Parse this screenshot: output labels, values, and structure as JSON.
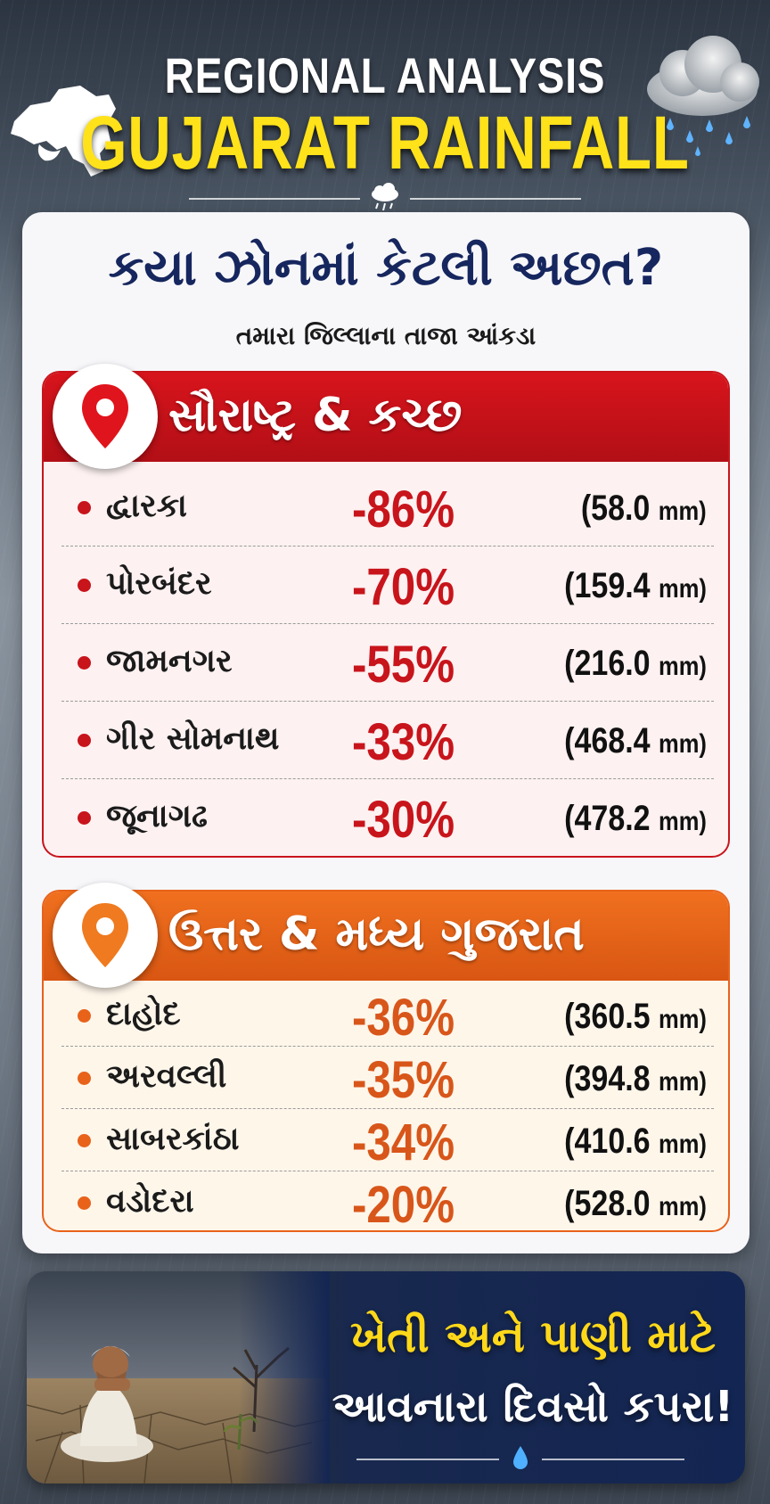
{
  "header": {
    "title_line1": "REGIONAL ANALYSIS",
    "title_line2": "GUJARAT RAINFALL",
    "decor_icons": [
      "gujarat-map-icon",
      "rain-cloud-icon"
    ]
  },
  "card": {
    "question": "કયા ઝોનમાં કેટલી અછત?",
    "subquestion": "તમારા જિલ્લાના તાજા આંકડા"
  },
  "zones": [
    {
      "title": "સૌરાષ્ટ્ર & કચ્છ",
      "color": "#c8141b",
      "rows": [
        {
          "name": "દ્વારકા",
          "deficit": "-86%",
          "rain": "(58.0",
          "unit": "mm)"
        },
        {
          "name": "પોરબંદર",
          "deficit": "-70%",
          "rain": "(159.4",
          "unit": "mm)"
        },
        {
          "name": "જામનગર",
          "deficit": "-55%",
          "rain": "(216.0",
          "unit": "mm)"
        },
        {
          "name": "ગીર સોમનાથ",
          "deficit": "-33%",
          "rain": "(468.4",
          "unit": "mm)"
        },
        {
          "name": "જૂનાગઢ",
          "deficit": "-30%",
          "rain": "(478.2",
          "unit": "mm)"
        }
      ]
    },
    {
      "title": "ઉત્તર & મધ્ય ગુજરાત",
      "color": "#e8621a",
      "rows": [
        {
          "name": "દાહોદ",
          "deficit": "-36%",
          "rain": "(360.5",
          "unit": "mm)"
        },
        {
          "name": "અરવલ્લી",
          "deficit": "-35%",
          "rain": "(394.8",
          "unit": "mm)"
        },
        {
          "name": "સાબરકાંઠા",
          "deficit": "-34%",
          "rain": "(410.6",
          "unit": "mm)"
        },
        {
          "name": "વડોદરા",
          "deficit": "-20%",
          "rain": "(528.0",
          "unit": "mm)"
        }
      ]
    }
  ],
  "banner": {
    "line1": "ખેતી અને પાણી માટે",
    "line2": "આવનારા દિવસો કપરા!"
  }
}
